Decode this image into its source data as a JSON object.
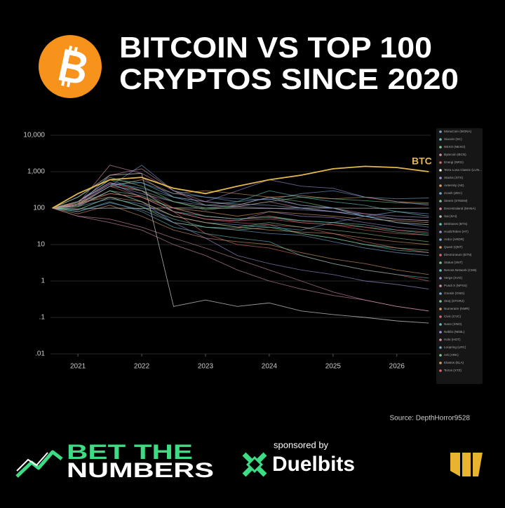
{
  "header": {
    "title_lines": [
      "BITCOIN VS TOP 100",
      "CRYPTOS SINCE 2020"
    ]
  },
  "chart_data": {
    "type": "line",
    "x": [
      2020.6,
      2021,
      2021.5,
      2022,
      2022.5,
      2023,
      2023.5,
      2024,
      2024.5,
      2025,
      2025.5,
      2026,
      2026.5
    ],
    "xlim": [
      2020.57,
      2026.53
    ],
    "xticks": [
      2021,
      2022,
      2023,
      2024,
      2025,
      2026
    ],
    "ylim": [
      0.01,
      10000
    ],
    "log_scale": true,
    "grid": true,
    "yticks": [
      {
        "value": 10000,
        "label": "10,000"
      },
      {
        "value": 1000,
        "label": "1,000"
      },
      100,
      10,
      1,
      {
        "value": 0.1,
        "label": ".1"
      },
      {
        "value": 0.01,
        "label": ".01"
      }
    ],
    "legend": "right",
    "highlight": {
      "name": "BTC",
      "color": "#e3b94f",
      "values": [
        100,
        250,
        600,
        700,
        350,
        250,
        400,
        600,
        800,
        1200,
        1400,
        1300,
        1000
      ]
    },
    "series": [
      {
        "name": "MonaCoin (MONA)",
        "color": "#7aa6d6",
        "values": [
          100,
          80,
          140,
          90,
          40,
          30,
          25,
          20,
          18,
          12,
          8,
          6,
          5
        ]
      },
      {
        "name": "Siacoin (SC)",
        "color": "#6cc1c1",
        "values": [
          100,
          90,
          200,
          110,
          50,
          30,
          28,
          35,
          20,
          15,
          10,
          7,
          6
        ]
      },
      {
        "name": "NEXO (NEXO)",
        "color": "#7fc98f",
        "values": [
          100,
          120,
          400,
          300,
          150,
          90,
          110,
          150,
          200,
          180,
          160,
          140,
          130
        ]
      },
      {
        "name": "Bytecoin (BCN)",
        "color": "#d48fb0",
        "values": [
          100,
          60,
          50,
          30,
          15,
          8,
          4,
          2,
          1,
          0.5,
          0.3,
          0.2,
          0.15
        ]
      },
      {
        "name": "Energi (NRG)",
        "color": "#d66b6b",
        "values": [
          100,
          150,
          500,
          300,
          80,
          20,
          10,
          8,
          5,
          3,
          2,
          1.5,
          1
        ]
      },
      {
        "name": "Terra Luna Classic (LUN...",
        "color": "#eeeeee",
        "values": [
          100,
          200,
          800,
          900,
          0.2,
          0.3,
          0.2,
          0.25,
          0.15,
          0.12,
          0.1,
          0.08,
          0.07
        ]
      },
      {
        "name": "Stacks (STX)",
        "color": "#a58fd4",
        "values": [
          100,
          150,
          600,
          700,
          200,
          150,
          300,
          600,
          400,
          350,
          200,
          150,
          120
        ]
      },
      {
        "name": "Aeternity (AE)",
        "color": "#d9a066",
        "values": [
          100,
          70,
          120,
          60,
          25,
          15,
          12,
          10,
          6,
          4,
          3,
          2,
          1.5
        ]
      },
      {
        "name": "Zcash (ZEC)",
        "color": "#7aa6d6",
        "values": [
          100,
          110,
          180,
          130,
          60,
          40,
          35,
          30,
          25,
          40,
          60,
          80,
          70
        ]
      },
      {
        "name": "Steem (STEEM)",
        "color": "#7fc98f",
        "values": [
          100,
          90,
          200,
          110,
          40,
          30,
          25,
          30,
          20,
          15,
          10,
          8,
          7
        ]
      },
      {
        "name": "Decentraland (MANA)",
        "color": "#d48fb0",
        "values": [
          100,
          120,
          800,
          1200,
          300,
          120,
          110,
          150,
          100,
          80,
          60,
          40,
          35
        ]
      },
      {
        "name": "Sai (SAI)",
        "color": "#bbbbbb",
        "values": [
          100,
          95,
          100,
          98,
          102,
          99,
          100,
          97,
          101,
          100,
          99,
          98,
          100
        ]
      },
      {
        "name": "BitShares (BTS)",
        "color": "#6cc1c1",
        "values": [
          100,
          80,
          150,
          80,
          30,
          20,
          15,
          12,
          5,
          3,
          2,
          1.5,
          1.2
        ]
      },
      {
        "name": "HuobiToken (HT)",
        "color": "#a58fd4",
        "values": [
          100,
          130,
          450,
          250,
          150,
          120,
          110,
          100,
          90,
          80,
          70,
          60,
          55
        ]
      },
      {
        "name": "Ardor (ARDR)",
        "color": "#7aa6d6",
        "values": [
          100,
          150,
          500,
          350,
          200,
          150,
          130,
          120,
          100,
          80,
          60,
          50,
          45
        ]
      },
      {
        "name": "Quant (QNT)",
        "color": "#d9a066",
        "values": [
          100,
          130,
          400,
          600,
          250,
          300,
          250,
          200,
          220,
          180,
          200,
          150,
          140
        ]
      },
      {
        "name": "Electroneum (ETN)",
        "color": "#d66b6b",
        "values": [
          100,
          120,
          400,
          200,
          80,
          50,
          40,
          35,
          30,
          20,
          12,
          8,
          6
        ]
      },
      {
        "name": "Status (SNT)",
        "color": "#7fc98f",
        "values": [
          100,
          110,
          300,
          220,
          100,
          60,
          50,
          60,
          45,
          40,
          30,
          22,
          18
        ]
      },
      {
        "name": "Nervos Network (CKB)",
        "color": "#6cc1c1",
        "values": [
          100,
          150,
          600,
          500,
          200,
          120,
          150,
          300,
          200,
          150,
          120,
          80,
          60
        ]
      },
      {
        "name": "Verge (XVG)",
        "color": "#a58fd4",
        "values": [
          100,
          150,
          500,
          200,
          80,
          50,
          45,
          80,
          60,
          55,
          40,
          30,
          25
        ]
      },
      {
        "name": "Pundi X (NPXS)",
        "color": "#d48fb0",
        "values": [
          100,
          60,
          40,
          25,
          10,
          5,
          2,
          1,
          0.6,
          0.4,
          0.3,
          0.2,
          0.15
        ]
      },
      {
        "name": "Gnosis (GNO)",
        "color": "#7aa6d6",
        "values": [
          100,
          150,
          450,
          500,
          250,
          200,
          180,
          170,
          250,
          300,
          200,
          180,
          190
        ]
      },
      {
        "name": "Storj (STORJ)",
        "color": "#7fc98f",
        "values": [
          100,
          200,
          700,
          400,
          150,
          100,
          120,
          200,
          150,
          100,
          60,
          40,
          35
        ]
      },
      {
        "name": "Numeraire (NMR)",
        "color": "#d9a066",
        "values": [
          100,
          150,
          250,
          200,
          100,
          80,
          60,
          80,
          70,
          60,
          50,
          45,
          40
        ]
      },
      {
        "name": "Civic (CVC)",
        "color": "#d66b6b",
        "values": [
          100,
          150,
          500,
          300,
          100,
          60,
          50,
          60,
          40,
          35,
          25,
          20,
          18
        ]
      },
      {
        "name": "Nano (XNO)",
        "color": "#6cc1c1",
        "values": [
          100,
          150,
          600,
          300,
          80,
          60,
          50,
          55,
          45,
          40,
          35,
          25,
          20
        ]
      },
      {
        "name": "Neblio (NEBL)",
        "color": "#a58fd4",
        "values": [
          100,
          120,
          300,
          150,
          40,
          15,
          5,
          3,
          2,
          1.5,
          1,
          0.8,
          0.6
        ]
      },
      {
        "name": "Holo (HOT)",
        "color": "#d48fb0",
        "values": [
          100,
          130,
          1500,
          900,
          300,
          150,
          120,
          200,
          120,
          100,
          70,
          50,
          45
        ]
      },
      {
        "name": "Loopring (LRC)",
        "color": "#7aa6d6",
        "values": [
          100,
          120,
          400,
          1500,
          300,
          200,
          150,
          180,
          120,
          100,
          60,
          40,
          30
        ]
      },
      {
        "name": "Ark (ARK)",
        "color": "#7fc98f",
        "values": [
          100,
          110,
          300,
          150,
          60,
          40,
          30,
          40,
          30,
          25,
          20,
          15,
          12
        ]
      },
      {
        "name": "Elastos (ELA)",
        "color": "#d9a066",
        "values": [
          100,
          140,
          200,
          150,
          60,
          40,
          30,
          25,
          22,
          20,
          15,
          12,
          10
        ]
      },
      {
        "name": "Tezos (XTZ)",
        "color": "#d66b6b",
        "values": [
          100,
          120,
          250,
          200,
          80,
          50,
          45,
          50,
          40,
          35,
          30,
          25,
          22
        ]
      }
    ],
    "source": "Source: DepthHorror9528"
  },
  "footer": {
    "brand_lines": [
      "BET THE",
      "NUMBERS"
    ],
    "sponsor_label": "sponsored by",
    "sponsor": "Duelbits"
  }
}
